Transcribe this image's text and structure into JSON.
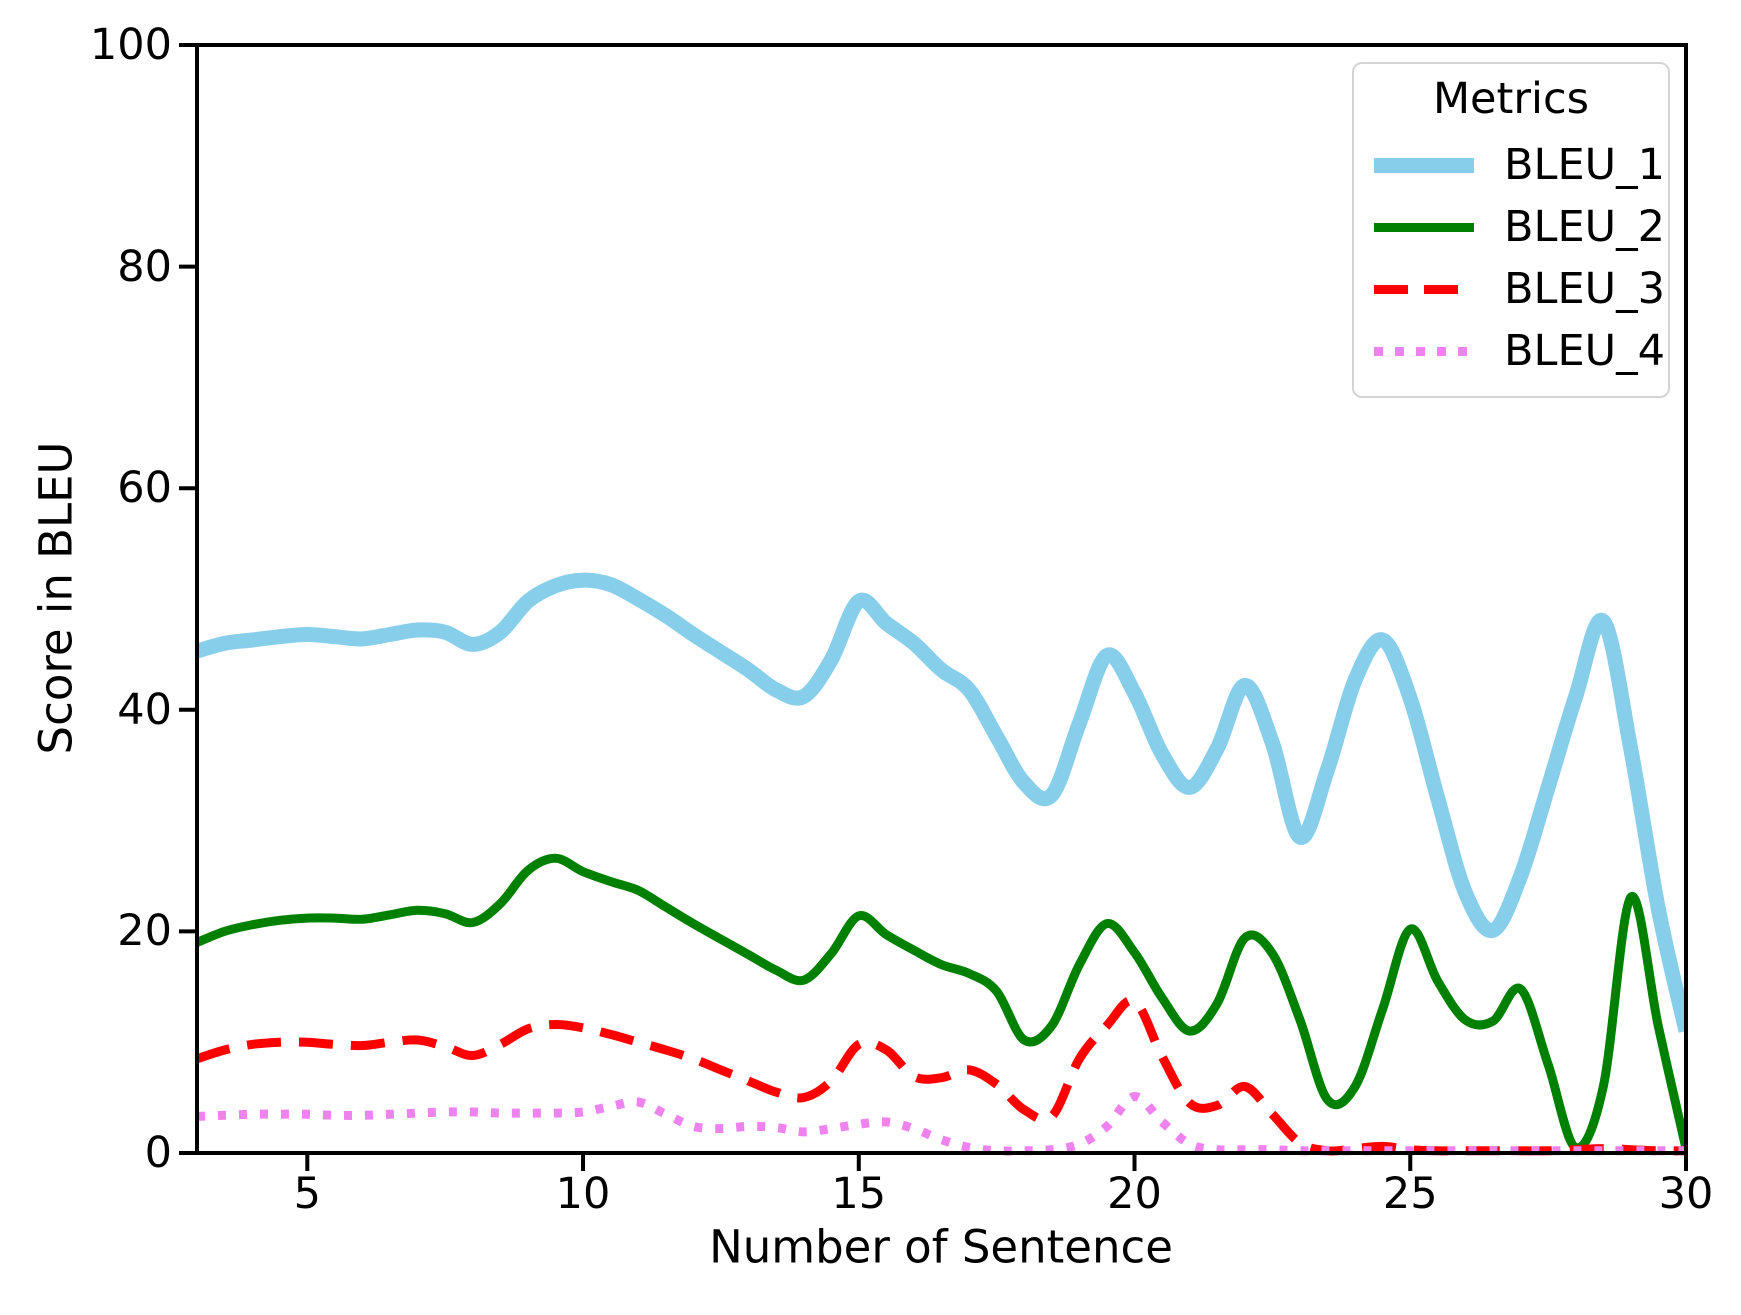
{
  "chart_data": {
    "type": "line",
    "title": "",
    "xlabel": "Number of Sentence",
    "ylabel": "Score in BLEU",
    "xlim": [
      3,
      30
    ],
    "ylim": [
      0,
      100
    ],
    "xticks": [
      5,
      10,
      15,
      20,
      25,
      30
    ],
    "yticks": [
      0,
      20,
      40,
      60,
      80,
      100
    ],
    "grid": false,
    "legend": {
      "title": "Metrics",
      "position": "upper right"
    },
    "series": [
      {
        "name": "BLEU_1",
        "color": "#87CEEB",
        "style": "solid",
        "line_width": 15,
        "points": [
          [
            3,
            45.3
          ],
          [
            3.5,
            46.0
          ],
          [
            4,
            46.3
          ],
          [
            4.5,
            46.6
          ],
          [
            5,
            46.8
          ],
          [
            5.5,
            46.6
          ],
          [
            6,
            46.4
          ],
          [
            6.5,
            46.8
          ],
          [
            7,
            47.2
          ],
          [
            7.5,
            47.0
          ],
          [
            8,
            45.9
          ],
          [
            8.5,
            47.0
          ],
          [
            9,
            49.8
          ],
          [
            9.5,
            51.2
          ],
          [
            10,
            51.7
          ],
          [
            10.5,
            51.3
          ],
          [
            11,
            50.0
          ],
          [
            11.5,
            48.5
          ],
          [
            12,
            46.8
          ],
          [
            12.5,
            45.2
          ],
          [
            13,
            43.6
          ],
          [
            13.5,
            41.8
          ],
          [
            14,
            41.2
          ],
          [
            14.5,
            44.5
          ],
          [
            15,
            49.8
          ],
          [
            15.5,
            47.8
          ],
          [
            16,
            46.0
          ],
          [
            16.5,
            43.6
          ],
          [
            17,
            41.8
          ],
          [
            17.5,
            37.6
          ],
          [
            18,
            33.4
          ],
          [
            18.5,
            32.3
          ],
          [
            19,
            38.8
          ],
          [
            19.5,
            44.9
          ],
          [
            20,
            41.5
          ],
          [
            20.5,
            36.0
          ],
          [
            21,
            33.0
          ],
          [
            21.5,
            36.5
          ],
          [
            22,
            42.2
          ],
          [
            22.5,
            37.0
          ],
          [
            23,
            28.5
          ],
          [
            23.5,
            34.6
          ],
          [
            24,
            42.7
          ],
          [
            24.5,
            46.3
          ],
          [
            25,
            41.0
          ],
          [
            25.5,
            32.0
          ],
          [
            26,
            23.5
          ],
          [
            26.5,
            20.1
          ],
          [
            27,
            25.0
          ],
          [
            27.5,
            33.0
          ],
          [
            28,
            41.2
          ],
          [
            28.5,
            48.0
          ],
          [
            29,
            36.4
          ],
          [
            29.5,
            22.0
          ],
          [
            30,
            11.0
          ]
        ]
      },
      {
        "name": "BLEU_2",
        "color": "#008000",
        "style": "solid",
        "line_width": 9,
        "points": [
          [
            3,
            19.0
          ],
          [
            3.5,
            20.0
          ],
          [
            4,
            20.6
          ],
          [
            4.5,
            21.0
          ],
          [
            5,
            21.2
          ],
          [
            5.5,
            21.2
          ],
          [
            6,
            21.1
          ],
          [
            6.5,
            21.5
          ],
          [
            7,
            21.9
          ],
          [
            7.5,
            21.6
          ],
          [
            8,
            20.8
          ],
          [
            8.5,
            22.5
          ],
          [
            9,
            25.5
          ],
          [
            9.5,
            26.6
          ],
          [
            10,
            25.4
          ],
          [
            10.5,
            24.5
          ],
          [
            11,
            23.7
          ],
          [
            11.5,
            22.2
          ],
          [
            12,
            20.7
          ],
          [
            12.5,
            19.3
          ],
          [
            13,
            17.9
          ],
          [
            13.5,
            16.5
          ],
          [
            14,
            15.6
          ],
          [
            14.5,
            18.0
          ],
          [
            15,
            21.4
          ],
          [
            15.5,
            19.7
          ],
          [
            16,
            18.3
          ],
          [
            16.5,
            17.0
          ],
          [
            17,
            16.2
          ],
          [
            17.5,
            14.6
          ],
          [
            18,
            10.2
          ],
          [
            18.5,
            11.5
          ],
          [
            19,
            17.0
          ],
          [
            19.5,
            20.7
          ],
          [
            20,
            18.1
          ],
          [
            20.5,
            14.0
          ],
          [
            21,
            11.0
          ],
          [
            21.5,
            13.5
          ],
          [
            22,
            19.4
          ],
          [
            22.5,
            18.0
          ],
          [
            23,
            12.0
          ],
          [
            23.5,
            4.8
          ],
          [
            24,
            6.0
          ],
          [
            24.5,
            13.0
          ],
          [
            25,
            20.2
          ],
          [
            25.5,
            15.5
          ],
          [
            26,
            12.0
          ],
          [
            26.5,
            11.9
          ],
          [
            27,
            14.8
          ],
          [
            27.5,
            8.0
          ],
          [
            28,
            0.5
          ],
          [
            28.5,
            6.0
          ],
          [
            29,
            23.1
          ],
          [
            29.5,
            11.4
          ],
          [
            30,
            0.4
          ]
        ]
      },
      {
        "name": "BLEU_3",
        "color": "#FF0000",
        "style": "dashed",
        "line_width": 9,
        "points": [
          [
            3,
            8.5
          ],
          [
            3.5,
            9.3
          ],
          [
            4,
            9.8
          ],
          [
            4.5,
            10.0
          ],
          [
            5,
            10.0
          ],
          [
            5.5,
            9.8
          ],
          [
            6,
            9.7
          ],
          [
            6.5,
            10.0
          ],
          [
            7,
            10.2
          ],
          [
            7.5,
            9.6
          ],
          [
            8,
            8.8
          ],
          [
            8.5,
            9.8
          ],
          [
            9,
            11.2
          ],
          [
            9.5,
            11.6
          ],
          [
            10,
            11.3
          ],
          [
            10.5,
            10.7
          ],
          [
            11,
            10.0
          ],
          [
            11.5,
            9.3
          ],
          [
            12,
            8.5
          ],
          [
            12.5,
            7.5
          ],
          [
            13,
            6.5
          ],
          [
            13.5,
            5.5
          ],
          [
            14,
            5.0
          ],
          [
            14.5,
            6.5
          ],
          [
            15,
            9.8
          ],
          [
            15.5,
            9.3
          ],
          [
            16,
            6.9
          ],
          [
            16.5,
            6.8
          ],
          [
            17,
            7.5
          ],
          [
            17.5,
            6.2
          ],
          [
            18,
            3.9
          ],
          [
            18.5,
            3.3
          ],
          [
            19,
            8.5
          ],
          [
            19.5,
            11.5
          ],
          [
            20,
            13.7
          ],
          [
            20.5,
            8.7
          ],
          [
            21,
            4.5
          ],
          [
            21.5,
            4.3
          ],
          [
            22,
            6.0
          ],
          [
            22.5,
            3.5
          ],
          [
            23,
            0.9
          ],
          [
            23.5,
            0.2
          ],
          [
            24,
            0.4
          ],
          [
            24.5,
            0.6
          ],
          [
            25,
            0.3
          ],
          [
            25.5,
            0.2
          ],
          [
            26,
            0.2
          ],
          [
            26.5,
            0.2
          ],
          [
            27,
            0.2
          ],
          [
            27.5,
            0.2
          ],
          [
            28,
            0.3
          ],
          [
            28.5,
            0.4
          ],
          [
            29,
            0.3
          ],
          [
            29.5,
            0.2
          ],
          [
            30,
            0.2
          ]
        ]
      },
      {
        "name": "BLEU_4",
        "color": "#EE82EE",
        "style": "dotted",
        "line_width": 9,
        "points": [
          [
            3,
            3.3
          ],
          [
            3.5,
            3.4
          ],
          [
            4,
            3.5
          ],
          [
            4.5,
            3.5
          ],
          [
            5,
            3.5
          ],
          [
            5.5,
            3.4
          ],
          [
            6,
            3.4
          ],
          [
            6.5,
            3.5
          ],
          [
            7,
            3.6
          ],
          [
            7.5,
            3.7
          ],
          [
            8,
            3.7
          ],
          [
            8.5,
            3.6
          ],
          [
            9,
            3.6
          ],
          [
            9.5,
            3.6
          ],
          [
            10,
            3.7
          ],
          [
            10.5,
            4.2
          ],
          [
            11,
            4.6
          ],
          [
            11.5,
            3.5
          ],
          [
            12,
            2.4
          ],
          [
            12.5,
            2.2
          ],
          [
            13,
            2.4
          ],
          [
            13.5,
            2.3
          ],
          [
            14,
            1.9
          ],
          [
            14.5,
            2.2
          ],
          [
            15,
            2.6
          ],
          [
            15.5,
            2.8
          ],
          [
            16,
            2.2
          ],
          [
            16.5,
            1.2
          ],
          [
            17,
            0.5
          ],
          [
            17.5,
            0.2
          ],
          [
            18,
            0.2
          ],
          [
            18.5,
            0.3
          ],
          [
            19,
            0.8
          ],
          [
            19.5,
            2.4
          ],
          [
            20,
            5.1
          ],
          [
            20.5,
            2.8
          ],
          [
            21,
            0.8
          ],
          [
            21.5,
            0.3
          ],
          [
            22,
            0.3
          ],
          [
            22.5,
            0.3
          ],
          [
            23,
            0.2
          ],
          [
            23.5,
            0.2
          ],
          [
            24,
            0.2
          ],
          [
            24.5,
            0.2
          ],
          [
            25,
            0.2
          ],
          [
            25.5,
            0.2
          ],
          [
            26,
            0.2
          ],
          [
            26.5,
            0.2
          ],
          [
            27,
            0.2
          ],
          [
            27.5,
            0.2
          ],
          [
            28,
            0.2
          ],
          [
            28.5,
            0.2
          ],
          [
            29,
            0.2
          ],
          [
            29.5,
            0.2
          ],
          [
            30,
            0.2
          ]
        ]
      }
    ]
  }
}
